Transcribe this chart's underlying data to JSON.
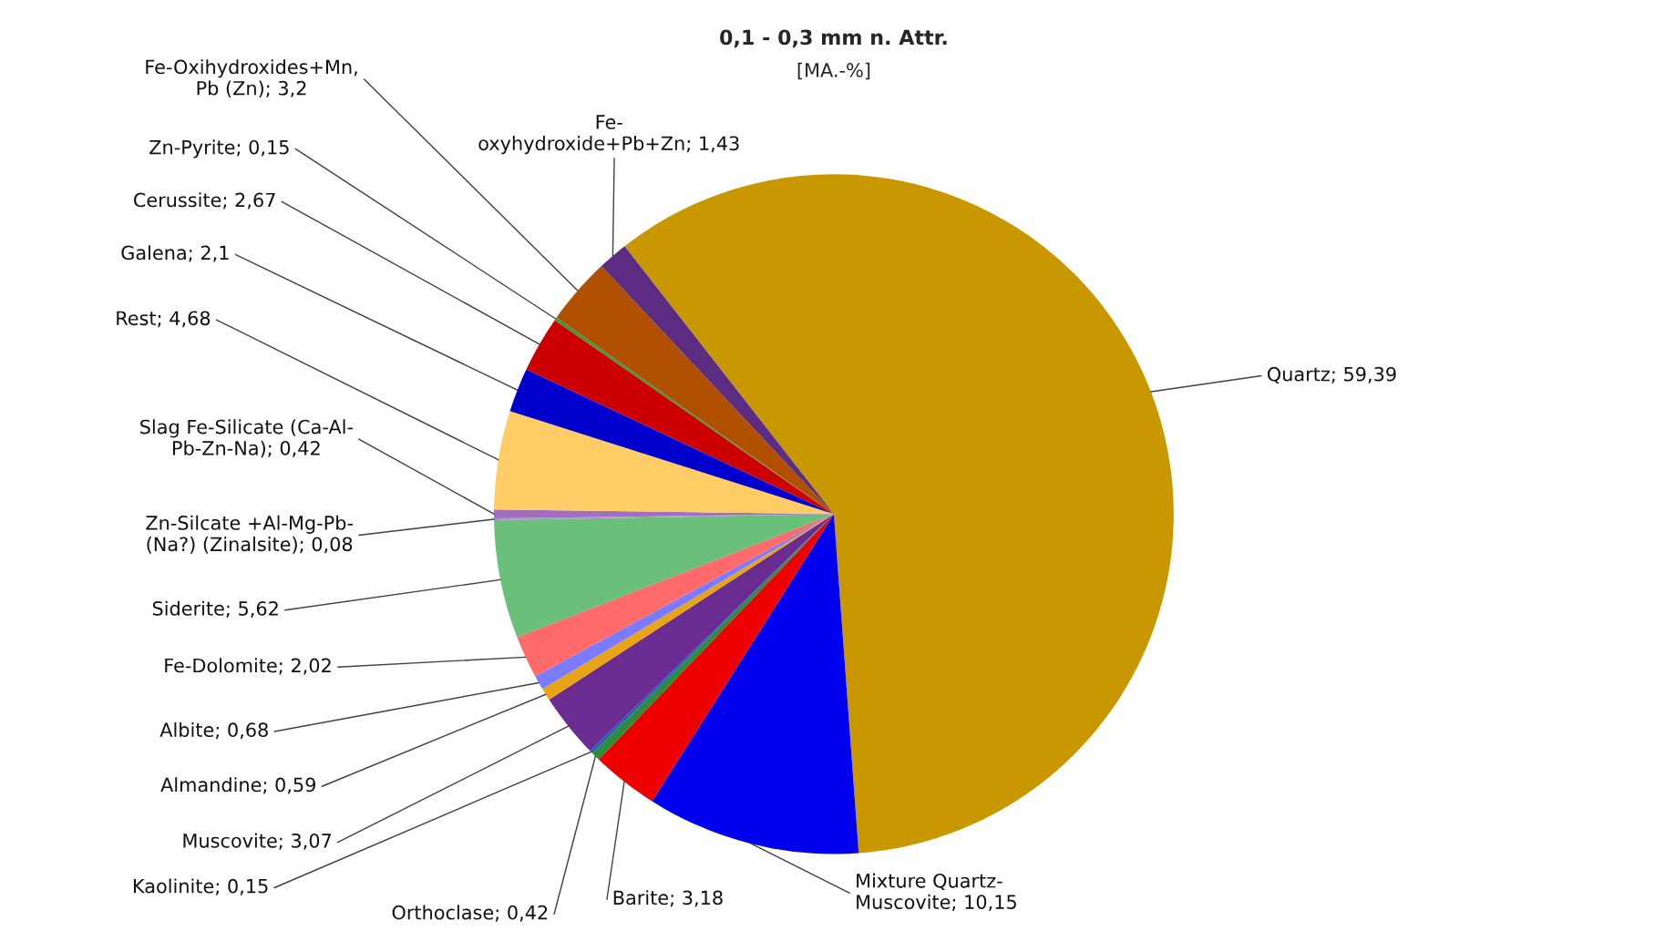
{
  "chart_data": {
    "type": "pie",
    "title": "0,1 - 0,3 mm n. Attr.",
    "subtitle": "[MA.-%]",
    "categories": [
      "Quartz",
      "Mixture Quartz-\nMuscovite",
      "Barite",
      "Orthoclase",
      "Kaolinite",
      "Muscovite",
      "Almandine",
      "Albite",
      "Fe-Dolomite",
      "Siderite",
      "Zn-Silcate +Al-Mg-Pb-\n(Na?) (Zinalsite)",
      "Slag Fe-Silicate (Ca-Al-\nPb-Zn-Na)",
      "Rest",
      "Galena",
      "Cerussite",
      "Zn-Pyrite",
      "Fe-Oxihydroxides+Mn,\nPb (Zn)",
      "Fe-\noxyhydroxide+Pb+Zn"
    ],
    "values": [
      59.39,
      10.15,
      3.18,
      0.42,
      0.15,
      3.07,
      0.59,
      0.68,
      2.02,
      5.62,
      0.08,
      0.42,
      4.68,
      2.1,
      2.67,
      0.15,
      3.2,
      1.43
    ],
    "value_labels": [
      "59,39",
      "10,15",
      "3,18",
      "0,42",
      "0,15",
      "3,07",
      "0,59",
      "0,68",
      "2,02",
      "5,62",
      "0,08",
      "0,42",
      "4,68",
      "2,1",
      "2,67",
      "0,15",
      "3,2",
      "1,43"
    ],
    "colors": [
      "#c99700",
      "#0000ee",
      "#ee0000",
      "#2e8b3a",
      "#1f5fbf",
      "#6a2c91",
      "#e8a317",
      "#7b7bff",
      "#ff6b6b",
      "#6abf7a",
      "#b08cd8",
      "#a070c0",
      "#ffcc66",
      "#0000cc",
      "#cc0000",
      "#3a9a3a",
      "#b05000",
      "#5b2c82"
    ]
  }
}
